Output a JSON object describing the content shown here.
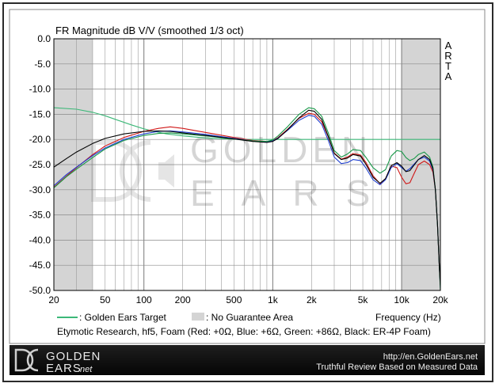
{
  "header": {
    "title": "FR Magnitude dB V/V (smoothed 1/3 oct)",
    "arta": [
      "A",
      "R",
      "T",
      "A"
    ]
  },
  "legend": {
    "target_label": ": Golden Ears Target",
    "no_guarantee_label": ": No Guarantee Area",
    "frequency_label": "Frequency (Hz)",
    "caption": "Etymotic Research, hf5, Foam (Red: +0Ω, Blue: +6Ω, Green: +86Ω, Black: ER-4P Foam)"
  },
  "watermark": {
    "line1": "GOLDEN",
    "line2": "EARS"
  },
  "footer": {
    "logo_line1": "GOLDEN",
    "logo_line2": "EARS",
    "logo_suffix": ".net",
    "url": "http://en.GoldenEars.net",
    "tagline": "Truthful Review Based on Measured Data"
  },
  "colors": {
    "red": "#d01818",
    "blue": "#2040d0",
    "green": "#189848",
    "black": "#000000",
    "target": "#3cb878",
    "shade": "#d4d4d4",
    "footer_bg": "#111111"
  },
  "chart_data": {
    "type": "line",
    "title": "FR Magnitude dB V/V (smoothed 1/3 oct)",
    "xlabel": "Frequency (Hz)",
    "ylabel": "",
    "x_scale": "log",
    "xlim": [
      20,
      20000
    ],
    "ylim": [
      -50,
      0
    ],
    "x_ticks": [
      20,
      50,
      100,
      200,
      500,
      1000,
      2000,
      5000,
      10000,
      20000
    ],
    "x_tick_labels": [
      "20",
      "50",
      "100",
      "200",
      "500",
      "1k",
      "2k",
      "5k",
      "10k",
      "20k"
    ],
    "y_ticks": [
      0,
      -5,
      -10,
      -15,
      -20,
      -25,
      -30,
      -35,
      -40,
      -45,
      -50
    ],
    "y_tick_labels": [
      "0.0",
      "-5.0",
      "-10.0",
      "-15.0",
      "-20.0",
      "-25.0",
      "-30.0",
      "-35.0",
      "-40.0",
      "-45.0",
      "-50.0"
    ],
    "grid": true,
    "shaded_regions": [
      [
        20,
        40
      ],
      [
        10000,
        20000
      ]
    ],
    "series": [
      {
        "name": "Golden Ears Target",
        "color": "#3cb878",
        "x": [
          20,
          30,
          40,
          50,
          60,
          80,
          100,
          120,
          150,
          200,
          300,
          500,
          700,
          1000,
          20000
        ],
        "y": [
          -13.7,
          -14.0,
          -14.6,
          -15.3,
          -16.0,
          -17.1,
          -17.9,
          -18.4,
          -18.9,
          -19.3,
          -19.7,
          -19.95,
          -20.0,
          -20.0,
          -20.0
        ]
      },
      {
        "name": "Red: +0Ω",
        "color": "#d01818",
        "x": [
          20,
          25,
          30,
          40,
          50,
          70,
          100,
          130,
          160,
          200,
          300,
          500,
          700,
          900,
          1000,
          1100,
          1300,
          1600,
          1900,
          2100,
          2400,
          2700,
          3000,
          3400,
          3800,
          4200,
          4800,
          5300,
          6000,
          6800,
          7500,
          8300,
          9200,
          10000,
          10800,
          11600,
          12500,
          13500,
          15000,
          16500,
          17500,
          18300,
          19000,
          19600,
          20000
        ],
        "y": [
          -29.5,
          -27.3,
          -25.6,
          -23.0,
          -21.3,
          -19.6,
          -18.4,
          -17.8,
          -17.5,
          -17.8,
          -18.6,
          -19.6,
          -20.2,
          -20.4,
          -20.2,
          -19.6,
          -18.0,
          -15.8,
          -14.8,
          -15.0,
          -16.5,
          -19.5,
          -22.7,
          -23.9,
          -23.5,
          -22.8,
          -23.1,
          -24.6,
          -27.2,
          -28.8,
          -27.8,
          -25.3,
          -25.6,
          -27.5,
          -28.8,
          -28.6,
          -26.8,
          -25.0,
          -24.3,
          -25.0,
          -26.5,
          -30.0,
          -37.0,
          -45.0,
          -49.0
        ]
      },
      {
        "name": "Blue: +6Ω",
        "color": "#2040d0",
        "x": [
          20,
          25,
          30,
          40,
          50,
          70,
          100,
          130,
          160,
          200,
          300,
          500,
          700,
          900,
          1000,
          1100,
          1300,
          1600,
          1900,
          2100,
          2400,
          2700,
          3000,
          3400,
          3800,
          4200,
          4800,
          5300,
          6000,
          6800,
          7500,
          8300,
          9200,
          10000,
          10800,
          11600,
          12500,
          13500,
          15000,
          16500,
          17500,
          18300,
          19000,
          19600,
          20000
        ],
        "y": [
          -29.2,
          -27.0,
          -25.5,
          -23.2,
          -21.7,
          -20.0,
          -18.9,
          -18.4,
          -18.3,
          -18.5,
          -19.0,
          -19.8,
          -20.3,
          -20.5,
          -20.3,
          -19.7,
          -18.2,
          -16.2,
          -15.2,
          -15.4,
          -17.0,
          -20.2,
          -23.5,
          -24.8,
          -24.6,
          -24.0,
          -24.2,
          -25.7,
          -28.0,
          -29.0,
          -28.0,
          -25.6,
          -24.8,
          -25.6,
          -26.3,
          -25.8,
          -24.9,
          -24.0,
          -23.5,
          -24.3,
          -26.0,
          -30.0,
          -37.0,
          -45.0,
          -49.5
        ]
      },
      {
        "name": "Green: +86Ω",
        "color": "#189848",
        "x": [
          20,
          25,
          30,
          40,
          50,
          70,
          100,
          130,
          160,
          200,
          300,
          500,
          700,
          900,
          1000,
          1100,
          1300,
          1600,
          1900,
          2100,
          2400,
          2700,
          3000,
          3400,
          3800,
          4200,
          4800,
          5300,
          6000,
          6800,
          7500,
          8300,
          9200,
          10000,
          10800,
          11600,
          12500,
          13500,
          15000,
          16500,
          17500,
          18300,
          19000,
          19600,
          20000
        ],
        "y": [
          -29.6,
          -27.4,
          -25.9,
          -23.6,
          -21.9,
          -20.2,
          -19.2,
          -18.8,
          -18.7,
          -18.9,
          -19.3,
          -19.9,
          -20.3,
          -20.4,
          -20.1,
          -19.3,
          -17.5,
          -15.0,
          -13.7,
          -13.9,
          -15.4,
          -18.7,
          -22.2,
          -23.5,
          -22.9,
          -22.0,
          -22.2,
          -23.6,
          -25.6,
          -26.7,
          -26.0,
          -23.3,
          -22.2,
          -22.4,
          -23.6,
          -24.2,
          -23.8,
          -23.0,
          -22.5,
          -23.5,
          -25.5,
          -30.0,
          -37.0,
          -45.0,
          -50.0
        ]
      },
      {
        "name": "Black: ER-4P Foam",
        "color": "#000000",
        "x": [
          20,
          25,
          30,
          40,
          50,
          70,
          100,
          130,
          160,
          200,
          300,
          500,
          700,
          900,
          1000,
          1100,
          1300,
          1600,
          1900,
          2100,
          2400,
          2700,
          3000,
          3400,
          3800,
          4200,
          4800,
          5300,
          6000,
          6800,
          7500,
          8300,
          9200,
          10000,
          10800,
          11600,
          12500,
          13500,
          15000,
          16500,
          17500,
          18300,
          19000,
          19600,
          20000
        ],
        "y": [
          -25.5,
          -23.8,
          -22.5,
          -20.8,
          -19.8,
          -18.9,
          -18.4,
          -18.3,
          -18.4,
          -18.7,
          -19.2,
          -19.9,
          -20.4,
          -20.6,
          -20.4,
          -19.8,
          -18.1,
          -15.7,
          -14.2,
          -14.4,
          -16.0,
          -19.4,
          -22.8,
          -24.0,
          -23.7,
          -23.0,
          -23.3,
          -25.0,
          -27.5,
          -28.7,
          -27.8,
          -25.2,
          -24.6,
          -25.3,
          -26.4,
          -26.2,
          -25.1,
          -24.0,
          -23.2,
          -24.0,
          -25.8,
          -30.0,
          -37.0,
          -45.0,
          -49.0
        ]
      }
    ]
  }
}
